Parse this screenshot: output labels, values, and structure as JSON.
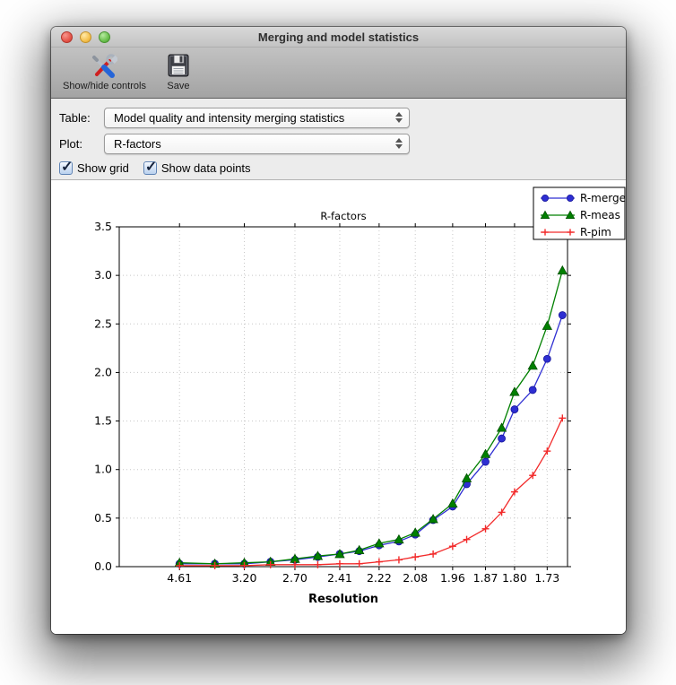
{
  "window": {
    "title": "Merging and model statistics"
  },
  "toolbar": {
    "show_hide_label": "Show/hide controls",
    "save_label": "Save"
  },
  "controls": {
    "table_label": "Table:",
    "table_value": "Model quality and intensity merging statistics",
    "plot_label": "Plot:",
    "plot_value": "R-factors",
    "show_grid_label": "Show grid",
    "show_grid_checked": true,
    "show_data_points_label": "Show data points",
    "show_data_points_checked": true,
    "check_glyph": "✓"
  },
  "chart_data": {
    "type": "line",
    "title": "R-factors",
    "xlabel": "Resolution",
    "ylabel": "",
    "ylim": [
      0,
      3.5
    ],
    "ytick_labels": [
      "0.0",
      "0.5",
      "1.0",
      "1.5",
      "2.0",
      "2.5",
      "3.0",
      "3.5"
    ],
    "grid": true,
    "show_markers": true,
    "legend_position": "upper right",
    "x_axis_note": "x is reciprocal resolution squared (1/d^2), 20 equal-volume bins, ticks at every other bin",
    "x_bins_resolution_A": [
      4.61,
      3.66,
      3.2,
      2.91,
      2.7,
      2.54,
      2.41,
      2.31,
      2.22,
      2.14,
      2.08,
      2.02,
      1.96,
      1.92,
      1.87,
      1.83,
      1.8,
      1.76,
      1.73,
      1.7
    ],
    "x_tick_bins": [
      0,
      2,
      4,
      6,
      8,
      10,
      12,
      14,
      16,
      18
    ],
    "x_tick_labels": [
      "4.61",
      "3.20",
      "2.70",
      "2.41",
      "2.22",
      "2.08",
      "1.96",
      "1.87",
      "1.80",
      "1.73"
    ],
    "series": [
      {
        "name": "R-merge",
        "color": "#2e2ed2",
        "edge": "#17179b",
        "marker": "circle",
        "values": [
          0.03,
          0.03,
          0.03,
          0.05,
          0.07,
          0.1,
          0.13,
          0.16,
          0.22,
          0.26,
          0.33,
          0.48,
          0.62,
          0.85,
          1.08,
          1.32,
          1.62,
          1.82,
          2.14,
          2.59
        ]
      },
      {
        "name": "R-meas",
        "color": "#008000",
        "edge": "#004f00",
        "marker": "triangle",
        "values": [
          0.04,
          0.03,
          0.04,
          0.05,
          0.08,
          0.11,
          0.13,
          0.17,
          0.24,
          0.28,
          0.35,
          0.49,
          0.65,
          0.91,
          1.16,
          1.43,
          1.8,
          2.07,
          2.48,
          3.05
        ]
      },
      {
        "name": "R-pim",
        "color": "#f22b2b",
        "edge": "#f22b2b",
        "marker": "plus",
        "values": [
          0.01,
          0.01,
          0.01,
          0.02,
          0.02,
          0.02,
          0.03,
          0.03,
          0.05,
          0.07,
          0.1,
          0.13,
          0.21,
          0.28,
          0.39,
          0.56,
          0.77,
          0.94,
          1.19,
          1.53
        ]
      }
    ],
    "style": {
      "grid_color": "#c8c8c8",
      "frame_color": "#000000",
      "bg": "#ffffff"
    }
  }
}
